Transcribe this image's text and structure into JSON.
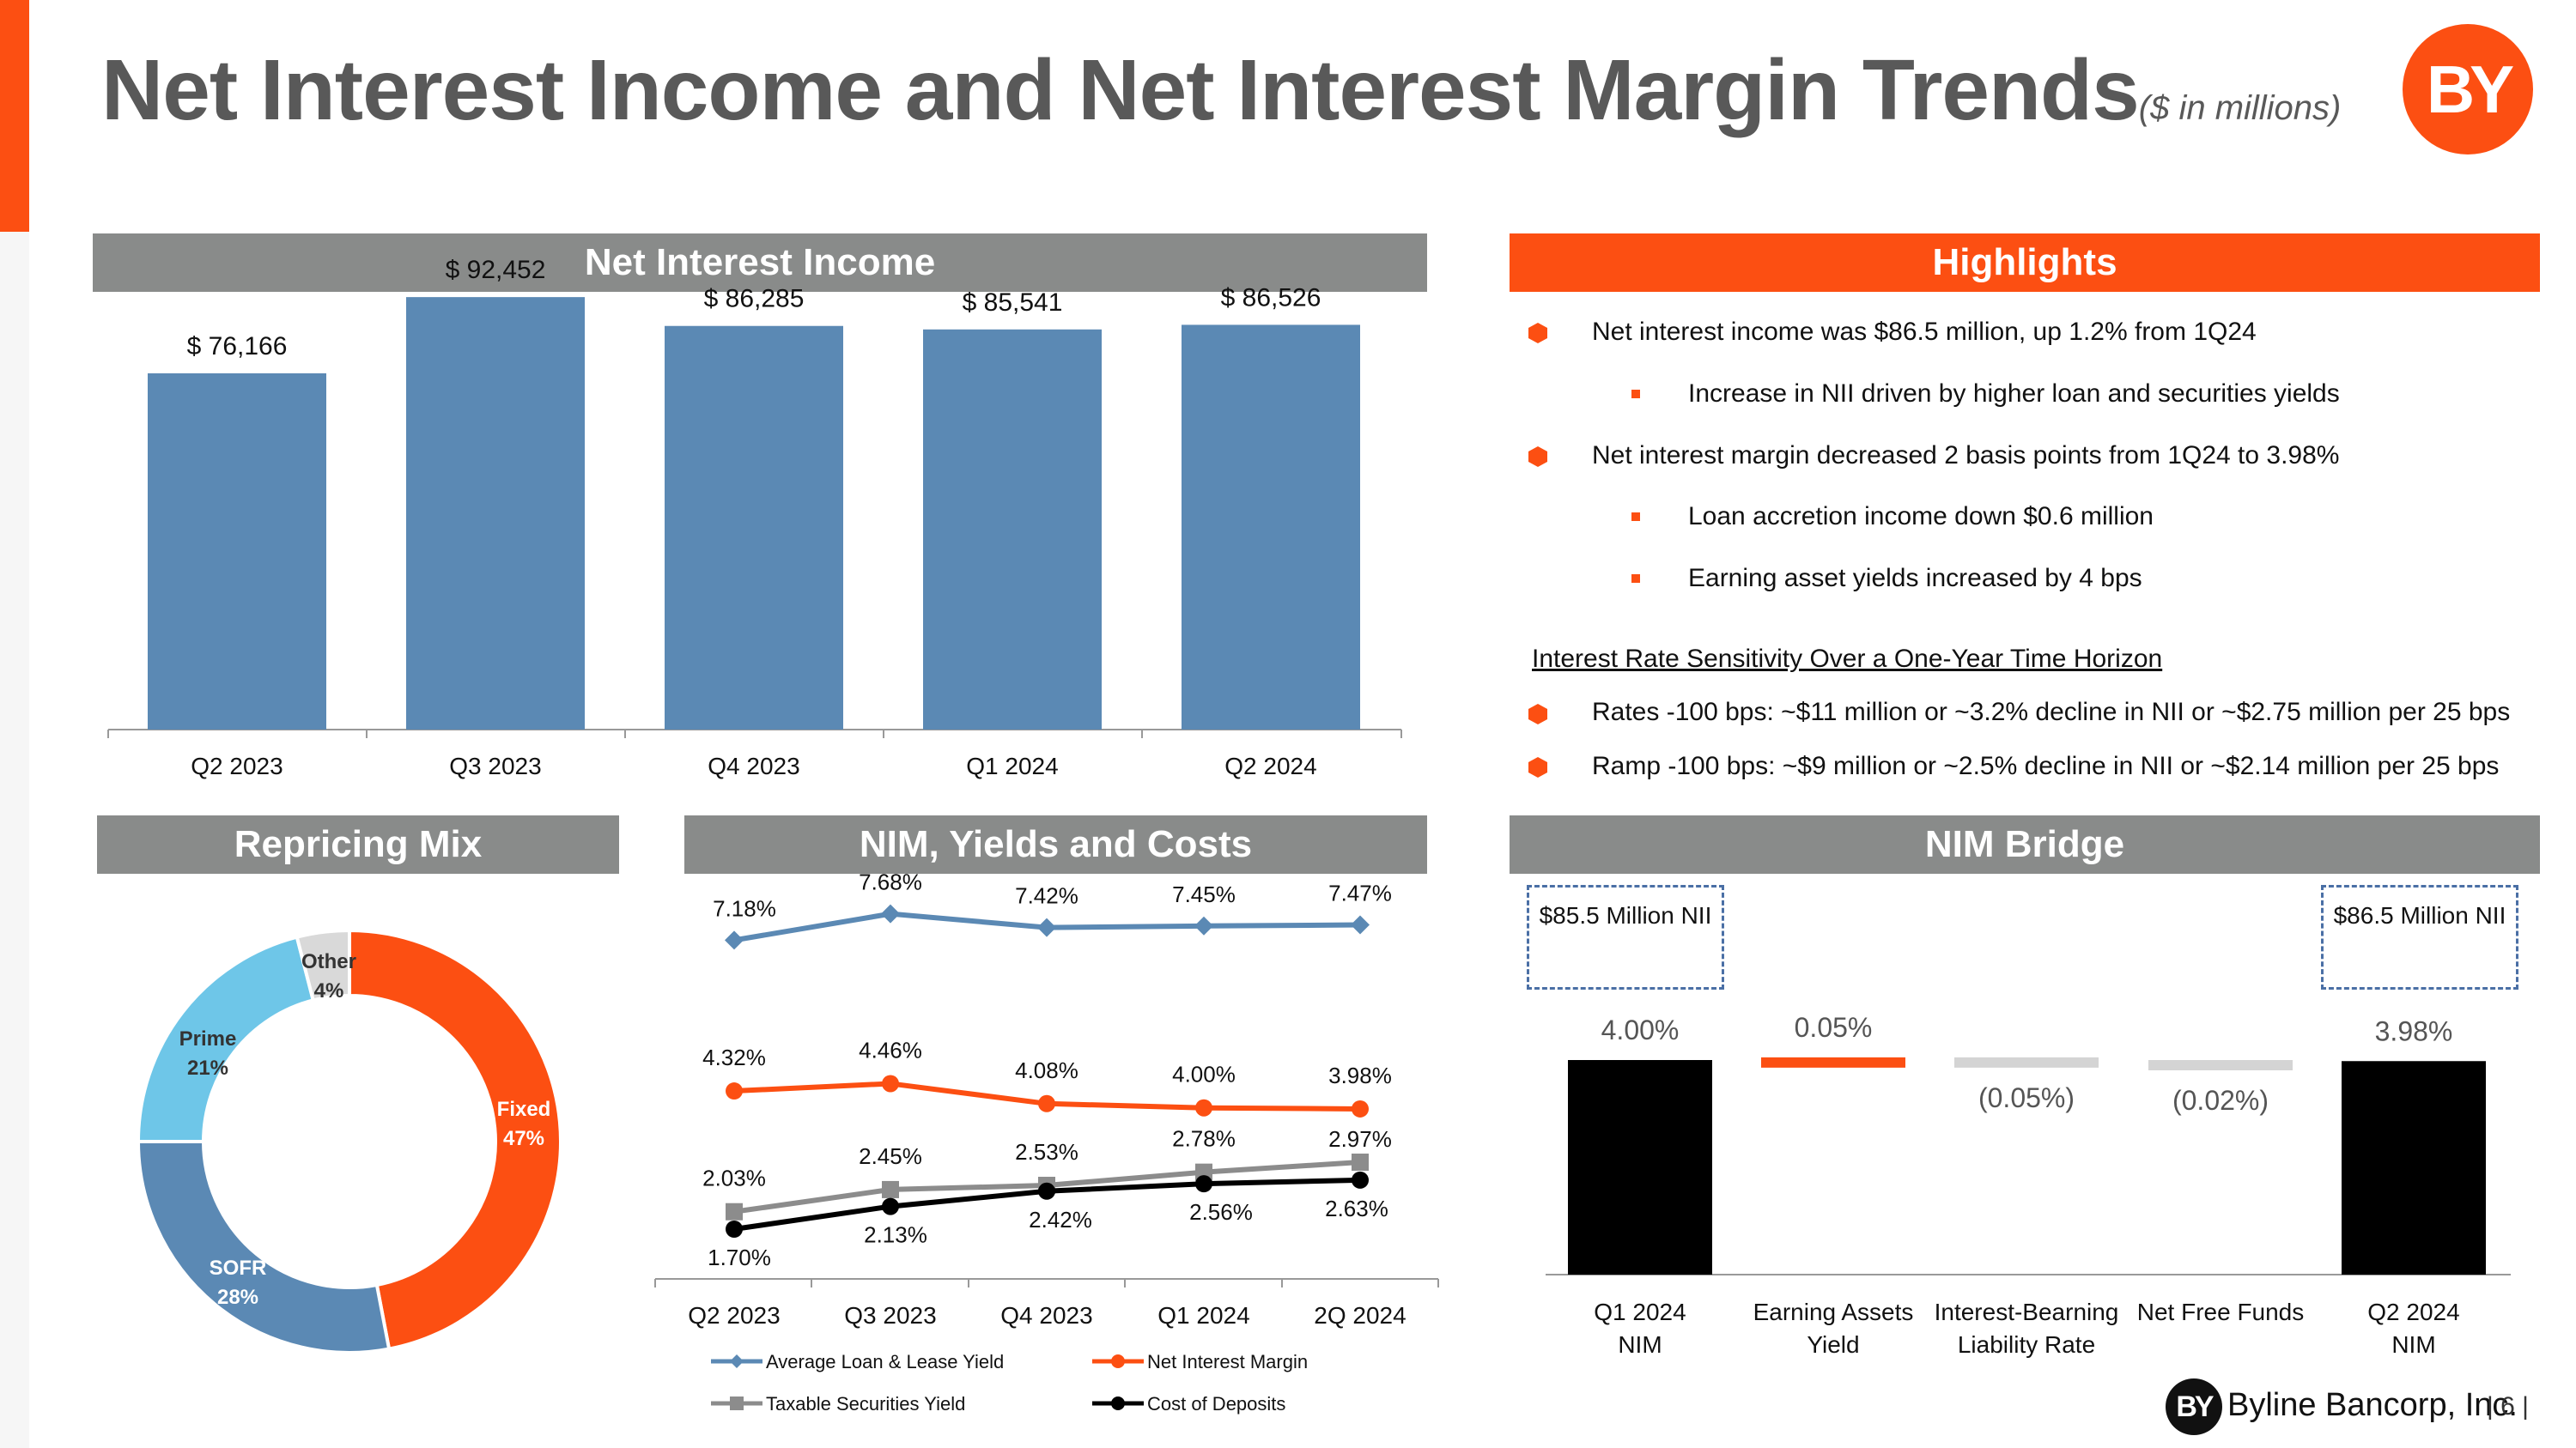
{
  "title": "Net Interest Income and Net Interest Margin Trends",
  "title_sub": "($ in millions)",
  "logo_text": "BY",
  "colors": {
    "accent": "#fc4f12",
    "header_gray": "#898b8a",
    "bar_blue": "#5b89b4",
    "donut_prime": "#6ec6e8",
    "donut_other": "#d9d9d9"
  },
  "sections": {
    "nii": "Net Interest Income",
    "highlights": "Highlights",
    "repricing": "Repricing Mix",
    "nim": "NIM, Yields and Costs",
    "bridge": "NIM Bridge"
  },
  "highlights": {
    "items": [
      "Net interest income was $86.5 million, up 1.2% from 1Q24",
      "Increase in NII driven by higher loan and securities yields",
      "Net interest margin decreased 2 basis points from 1Q24 to 3.98%",
      "Loan accretion income down $0.6 million",
      "Earning asset yields increased by 4 bps"
    ],
    "sensitivity_title": "Interest Rate Sensitivity Over a One-Year Time Horizon",
    "sensitivity": [
      "Rates -100 bps: ~$11 million or ~3.2% decline in NII or ~$2.75 million per 25 bps",
      "Ramp -100 bps: ~$9 million or ~2.5% decline in NII or ~$2.14 million per 25 bps"
    ]
  },
  "bridge_boxes": {
    "left": "$85.5 Million NII",
    "right": "$86.5 Million NII"
  },
  "footer": {
    "company": "Byline Bancorp, Inc.",
    "page": "| 6 |"
  },
  "chart_data": [
    {
      "type": "bar",
      "categories": [
        "Q2 2023",
        "Q3 2023",
        "Q4 2023",
        "Q1 2024",
        "Q2 2024"
      ],
      "values": [
        76166,
        92452,
        86285,
        85541,
        86526
      ],
      "data_labels": [
        "$ 76,166",
        "$ 92,452",
        "$ 86,285",
        "$ 85,541",
        "$ 86,526"
      ],
      "ylim": [
        0,
        100000
      ],
      "grid": false
    },
    {
      "type": "pie",
      "donut": true,
      "slices": [
        {
          "name": "Fixed",
          "value": 47,
          "label": "47%",
          "color": "#fc4f12"
        },
        {
          "name": "SOFR",
          "value": 28,
          "label": "28%",
          "color": "#5b89b4"
        },
        {
          "name": "Prime",
          "value": 21,
          "label": "21%",
          "color": "#6ec6e8"
        },
        {
          "name": "Other",
          "value": 4,
          "label": "4%",
          "color": "#d9d9d9"
        }
      ]
    },
    {
      "type": "line",
      "categories": [
        "Q2 2023",
        "Q3 2023",
        "Q4 2023",
        "Q1 2024",
        "2Q 2024"
      ],
      "ylim": [
        1.0,
        8.0
      ],
      "legend_position": "bottom",
      "series": [
        {
          "name": "Average Loan & Lease Yield",
          "values": [
            7.18,
            7.68,
            7.42,
            7.45,
            7.47
          ],
          "labels": [
            "7.18%",
            "7.68%",
            "7.42%",
            "7.45%",
            "7.47%"
          ],
          "color": "#5b89b4",
          "marker": "diamond"
        },
        {
          "name": "Net Interest Margin",
          "values": [
            4.32,
            4.46,
            4.08,
            4.0,
            3.98
          ],
          "labels": [
            "4.32%",
            "4.46%",
            "4.08%",
            "4.00%",
            "3.98%"
          ],
          "color": "#fc4f12",
          "marker": "circle"
        },
        {
          "name": "Taxable Securities Yield",
          "values": [
            2.03,
            2.45,
            2.53,
            2.78,
            2.97
          ],
          "labels": [
            "2.03%",
            "2.45%",
            "2.53%",
            "2.78%",
            "2.97%"
          ],
          "color": "#8c8c8c",
          "marker": "square"
        },
        {
          "name": "Cost of Deposits",
          "values": [
            1.7,
            2.13,
            2.42,
            2.56,
            2.63
          ],
          "labels": [
            "1.70%",
            "2.13%",
            "2.42%",
            "2.56%",
            "2.63%"
          ],
          "color": "#000000",
          "marker": "circle"
        }
      ]
    },
    {
      "type": "bar",
      "subtype": "waterfall",
      "categories": [
        "Q1 2024 NIM",
        "Earning Assets Yield",
        "Interest-Bearning Liability Rate",
        "Net Free Funds",
        "Q2 2024 NIM"
      ],
      "category_lines": [
        [
          "Q1 2024",
          "NIM"
        ],
        [
          "Earning Assets",
          "Yield"
        ],
        [
          "Interest-Bearning",
          "Liability Rate"
        ],
        [
          "Net Free Funds"
        ],
        [
          "Q2 2024",
          "NIM"
        ]
      ],
      "values": [
        4.0,
        0.05,
        -0.05,
        -0.02,
        3.98
      ],
      "labels": [
        "4.00%",
        "0.05%",
        "(0.05%)",
        "(0.02%)",
        "3.98%"
      ],
      "colors": [
        "#000000",
        "#fc4f12",
        "#d4d4d4",
        "#d4d4d4",
        "#000000"
      ]
    }
  ]
}
